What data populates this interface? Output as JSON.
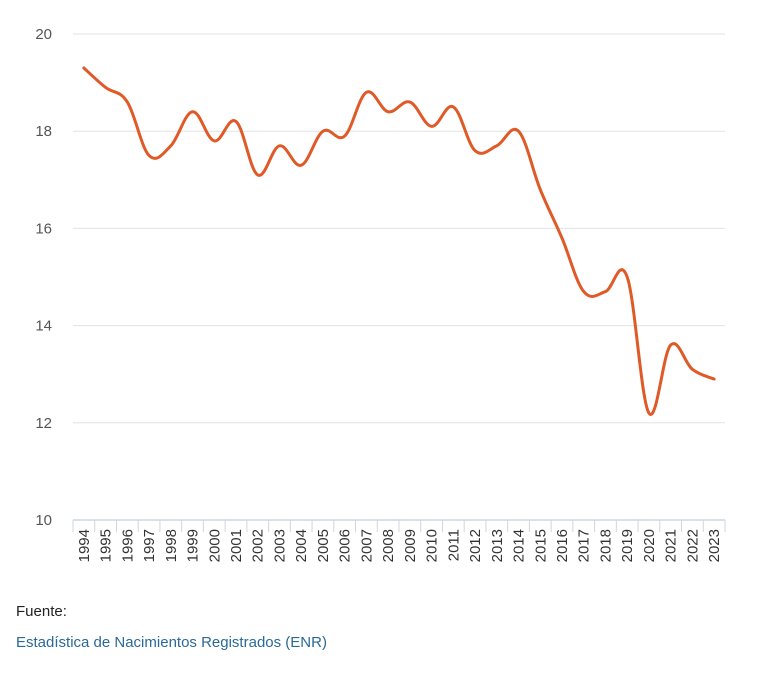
{
  "colors": {
    "line": "#e05a27",
    "grid": "#e3e3e3",
    "axis": "#cdd6e3"
  },
  "footer": {
    "source_label": "Fuente:",
    "source_link": "Estadística de Nacimientos Registrados (ENR)"
  },
  "chart_data": {
    "type": "line",
    "title": "",
    "xlabel": "",
    "ylabel": "",
    "ylim": [
      10,
      20
    ],
    "yticks": [
      10,
      12,
      14,
      16,
      18,
      20
    ],
    "grid": true,
    "categories": [
      "1994",
      "1995",
      "1996",
      "1997",
      "1998",
      "1999",
      "2000",
      "2001",
      "2002",
      "2003",
      "2004",
      "2005",
      "2006",
      "2007",
      "2008",
      "2009",
      "2010",
      "2011",
      "2012",
      "2013",
      "2014",
      "2015",
      "2016",
      "2017",
      "2018",
      "2019",
      "2020",
      "2021",
      "2022",
      "2023"
    ],
    "series": [
      {
        "values": [
          19.3,
          18.9,
          18.6,
          17.5,
          17.7,
          18.4,
          17.8,
          18.2,
          17.1,
          17.7,
          17.3,
          18.0,
          17.9,
          18.8,
          18.4,
          18.6,
          18.1,
          18.5,
          17.6,
          17.7,
          18.0,
          16.8,
          15.8,
          14.7,
          14.7,
          15.0,
          12.2,
          13.6,
          13.1,
          12.9
        ]
      }
    ]
  }
}
